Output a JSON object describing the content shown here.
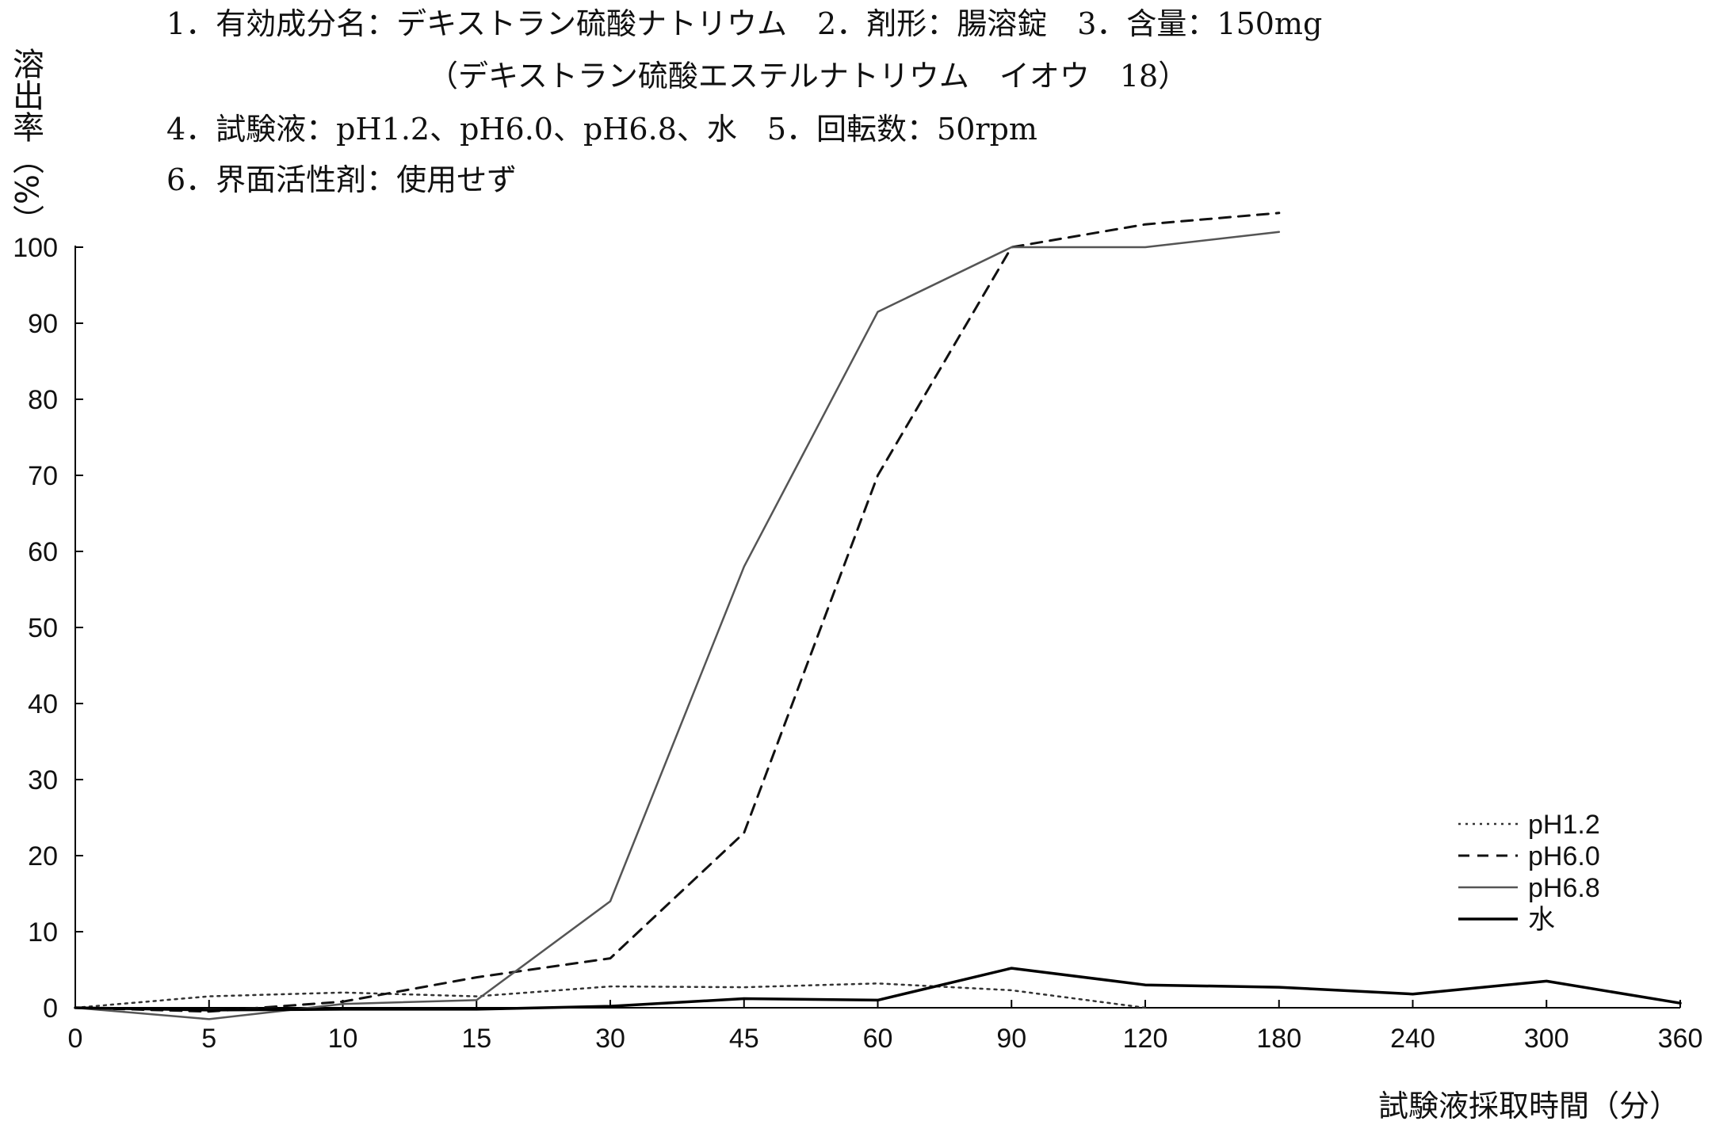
{
  "header": {
    "line1": "1．有効成分名：デキストラン硫酸ナトリウム　2．剤形：腸溶錠　3．含量：150mg",
    "line2": "（デキストラン硫酸エステルナトリウム　イオウ　18）",
    "line3": "4．試験液：pH1.2、pH6.0、pH6.8、水　5．回転数：50rpm",
    "line4": "6．界面活性剤：使用せず"
  },
  "chart_data": {
    "type": "line",
    "xlabel": "試験液採取時間（分）",
    "ylabel": "溶出率（%）",
    "categories": [
      "0",
      "5",
      "10",
      "15",
      "30",
      "45",
      "60",
      "90",
      "120",
      "180",
      "240",
      "300",
      "360"
    ],
    "ylim": [
      0,
      100
    ],
    "yticks": [
      0,
      10,
      20,
      30,
      40,
      50,
      60,
      70,
      80,
      90,
      100
    ],
    "legend_position": "bottom-right",
    "grid": false,
    "series": [
      {
        "name": "pH1.2",
        "style": "dotted",
        "color": "#333333",
        "values": [
          0,
          1.5,
          2,
          1.5,
          2.8,
          2.7,
          3.2,
          2.3,
          0,
          null,
          null,
          null,
          null
        ]
      },
      {
        "name": "pH6.0",
        "style": "dashed",
        "color": "#111111",
        "values": [
          0,
          -0.5,
          0.8,
          4,
          6.5,
          23,
          70,
          100,
          103,
          104.5,
          null,
          null,
          null
        ]
      },
      {
        "name": "pH6.8",
        "style": "solid-thin",
        "color": "#555555",
        "values": [
          0,
          -1.5,
          0.5,
          1,
          14,
          58,
          91.5,
          100,
          100,
          102,
          null,
          null,
          null
        ]
      },
      {
        "name": "水",
        "style": "solid",
        "color": "#000000",
        "values": [
          0,
          -0.3,
          -0.2,
          -0.2,
          0.2,
          1.2,
          1,
          5.2,
          3,
          2.7,
          1.8,
          3.5,
          0.6
        ]
      }
    ]
  }
}
